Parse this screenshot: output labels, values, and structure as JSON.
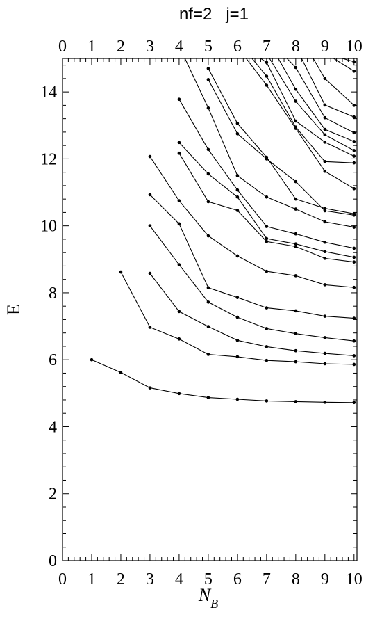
{
  "chart_data": {
    "type": "line",
    "title": "nf=2   j=1",
    "xlabel": "N",
    "xlabel_sub": "B",
    "ylabel": "E",
    "xlim": [
      0,
      10.1
    ],
    "ylim": [
      0,
      15
    ],
    "x_ticks": [
      0,
      1,
      2,
      3,
      4,
      5,
      6,
      7,
      8,
      9,
      10
    ],
    "y_ticks": [
      0,
      2,
      4,
      6,
      8,
      10,
      12,
      14
    ],
    "top_x_ticks": [
      0,
      1,
      2,
      3,
      4,
      5,
      6,
      7,
      8,
      9,
      10
    ],
    "grid": false,
    "series": [
      {
        "x": [
          1,
          2,
          3,
          4,
          5,
          6,
          7,
          8,
          9,
          10
        ],
        "y": [
          6.0,
          5.62,
          5.16,
          4.99,
          4.87,
          4.82,
          4.77,
          4.75,
          4.73,
          4.72
        ]
      },
      {
        "x": [
          2,
          3,
          4,
          5,
          6,
          7,
          8,
          9,
          10
        ],
        "y": [
          8.62,
          6.97,
          6.62,
          6.16,
          6.09,
          5.98,
          5.94,
          5.88,
          5.86
        ]
      },
      {
        "x": [
          3,
          4,
          5,
          6,
          7,
          8,
          9,
          10
        ],
        "y": [
          8.58,
          7.44,
          6.99,
          6.58,
          6.39,
          6.27,
          6.19,
          6.12
        ]
      },
      {
        "x": [
          3,
          4,
          5,
          6,
          7,
          8,
          9,
          10
        ],
        "y": [
          10.0,
          8.84,
          7.72,
          7.27,
          6.93,
          6.78,
          6.66,
          6.56
        ]
      },
      {
        "x": [
          3,
          4,
          5,
          6,
          7,
          8,
          9,
          10
        ],
        "y": [
          10.93,
          10.06,
          8.15,
          7.86,
          7.55,
          7.46,
          7.3,
          7.24
        ]
      },
      {
        "x": [
          3,
          4,
          5,
          6,
          7,
          8,
          9,
          10
        ],
        "y": [
          12.07,
          10.75,
          9.7,
          9.1,
          8.64,
          8.51,
          8.24,
          8.16
        ]
      },
      {
        "x": [
          4,
          5,
          6,
          7,
          8,
          9,
          10
        ],
        "y": [
          12.17,
          10.72,
          10.46,
          9.53,
          9.38,
          9.03,
          8.92
        ]
      },
      {
        "x": [
          4,
          5,
          6,
          7,
          8,
          9,
          10
        ],
        "y": [
          12.49,
          11.55,
          10.86,
          9.62,
          9.46,
          9.23,
          9.06
        ]
      },
      {
        "x": [
          4,
          5,
          6,
          7,
          8,
          9,
          10
        ],
        "y": [
          13.78,
          12.28,
          11.07,
          9.98,
          9.76,
          9.51,
          9.33
        ]
      },
      {
        "x": [
          4.2,
          5,
          6,
          7,
          8,
          9,
          10
        ],
        "y": [
          15,
          13.52,
          11.5,
          10.86,
          10.5,
          10.12,
          9.96
        ]
      },
      {
        "x": [
          5,
          6,
          7,
          8,
          9,
          10
        ],
        "y": [
          14.37,
          12.75,
          12.0,
          11.32,
          10.45,
          10.32
        ]
      },
      {
        "x": [
          5,
          6,
          7,
          8,
          9,
          10
        ],
        "y": [
          14.7,
          13.06,
          12.05,
          10.8,
          10.52,
          10.36
        ]
      },
      {
        "x": [
          6.3,
          7,
          8,
          9,
          10
        ],
        "y": [
          15,
          14.2,
          12.91,
          11.63,
          11.11
        ]
      },
      {
        "x": [
          6.5,
          7,
          8,
          9,
          10
        ],
        "y": [
          15,
          14.47,
          12.95,
          11.92,
          11.88
        ]
      },
      {
        "x": [
          6.8,
          7,
          8,
          9,
          10
        ],
        "y": [
          15,
          14.88,
          13.13,
          12.5,
          12.08
        ]
      },
      {
        "x": [
          7.1,
          8,
          9,
          10
        ],
        "y": [
          15,
          13.72,
          12.72,
          12.25
        ]
      },
      {
        "x": [
          7.4,
          8,
          9,
          10
        ],
        "y": [
          15,
          14.08,
          12.88,
          12.52
        ]
      },
      {
        "x": [
          7.7,
          8,
          9,
          10
        ],
        "y": [
          15,
          14.73,
          13.23,
          12.78
        ]
      },
      {
        "x": [
          8.2,
          9,
          10
        ],
        "y": [
          15,
          13.61,
          13.25
        ]
      },
      {
        "x": [
          8.6,
          9,
          10
        ],
        "y": [
          15,
          14.4,
          13.6
        ]
      },
      {
        "x": [
          9.3,
          10
        ],
        "y": [
          15,
          14.62
        ]
      },
      {
        "x": [
          9.6,
          10
        ],
        "y": [
          15,
          14.9
        ]
      }
    ]
  }
}
